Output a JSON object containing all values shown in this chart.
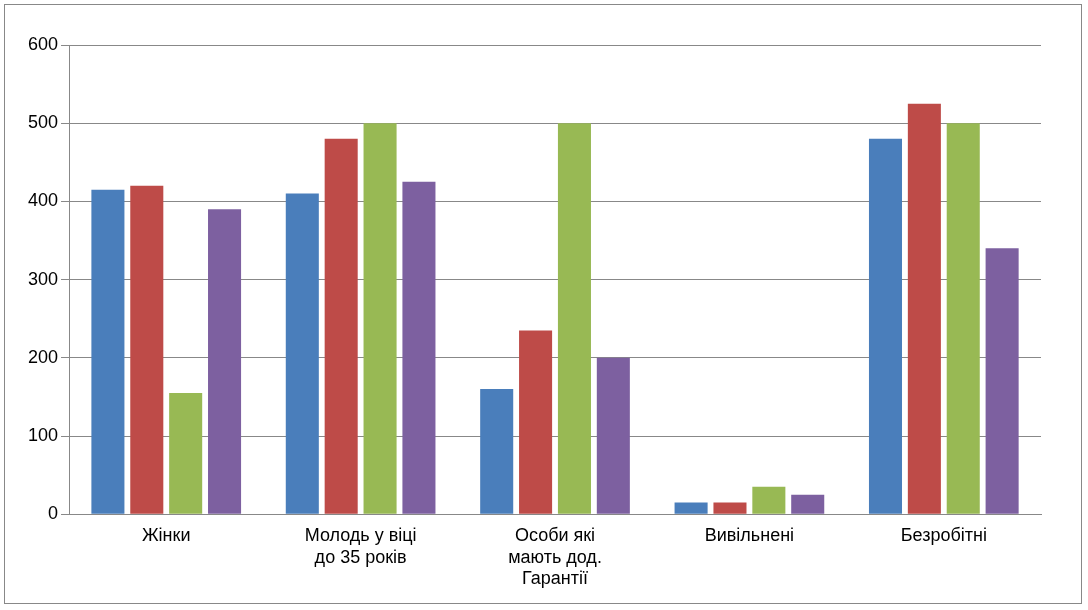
{
  "chart_data": {
    "type": "bar",
    "categories": [
      "Жінки",
      "Молодь у віці до 35 років",
      "Особи які мають дод. Гарантії",
      "Вивільнені",
      "Безробітні"
    ],
    "series": [
      {
        "color": "#4a7ebb",
        "values": [
          415,
          410,
          160,
          15,
          480
        ]
      },
      {
        "color": "#be4b48",
        "values": [
          420,
          480,
          235,
          15,
          525
        ]
      },
      {
        "color": "#98b954",
        "values": [
          155,
          500,
          500,
          35,
          500
        ]
      },
      {
        "color": "#7d60a0",
        "values": [
          390,
          425,
          200,
          25,
          340
        ]
      }
    ],
    "ylim": [
      0,
      600
    ],
    "yticks": [
      0,
      100,
      200,
      300,
      400,
      500,
      600
    ],
    "grid": "y",
    "legend": false
  }
}
